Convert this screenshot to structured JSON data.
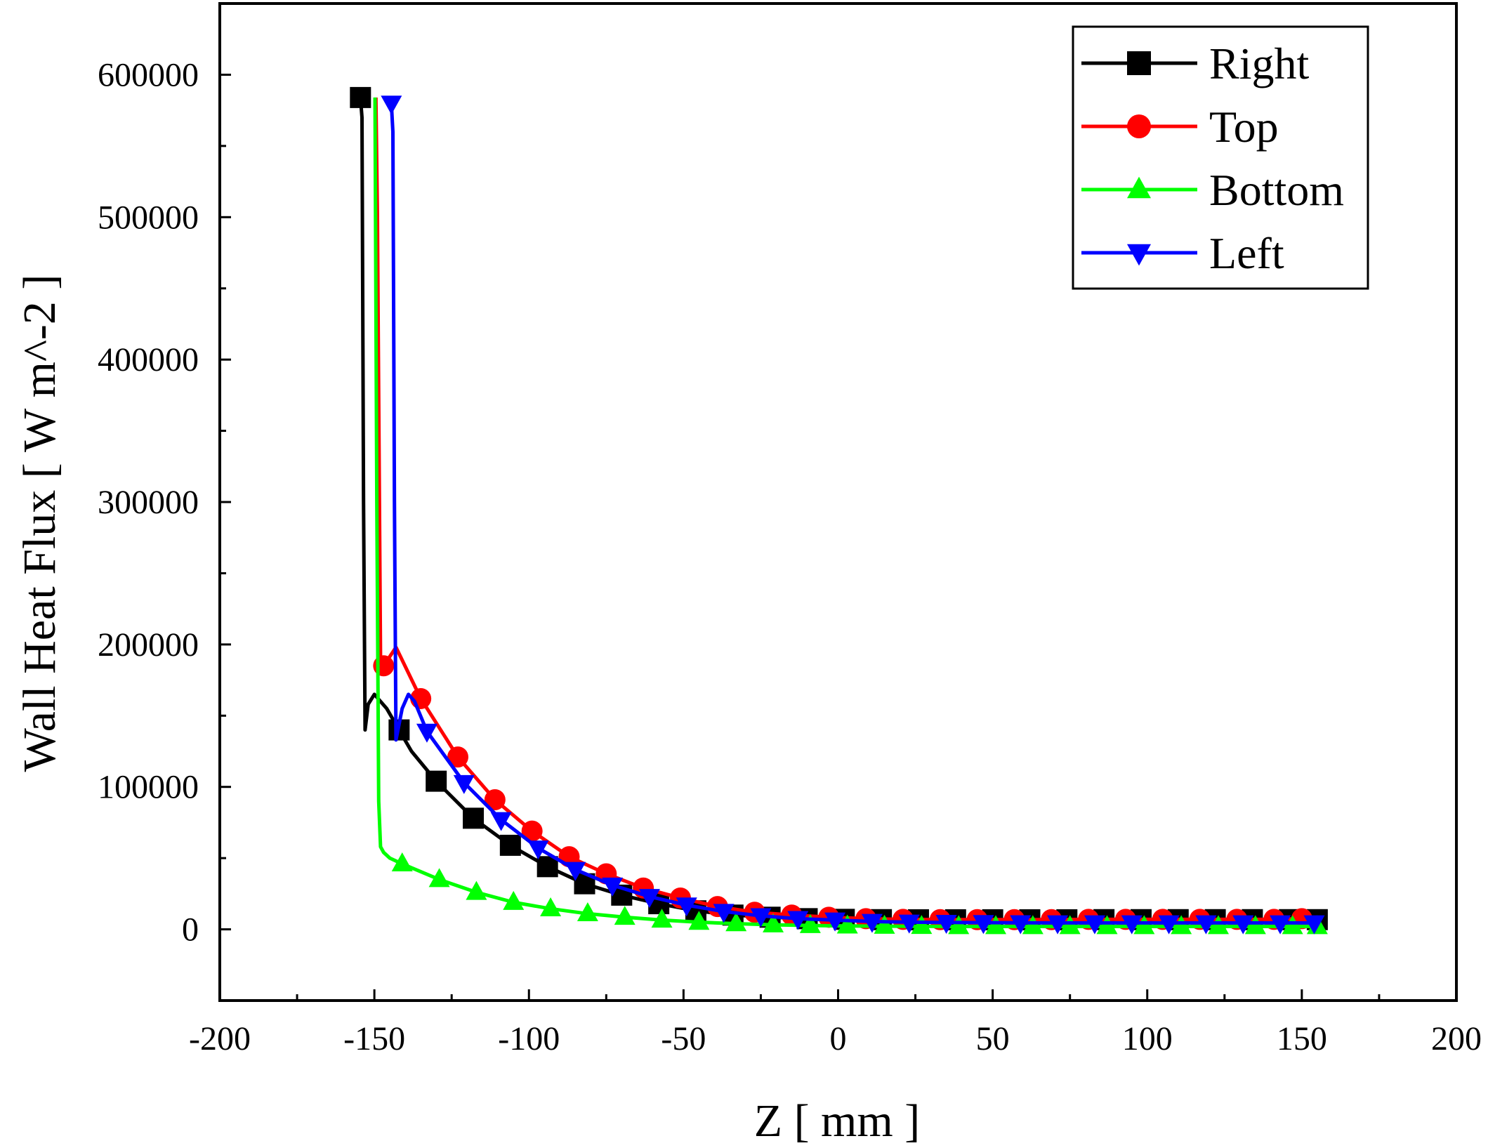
{
  "chart_data": {
    "type": "line",
    "title": "",
    "xlabel": "Z [ mm ]",
    "ylabel": "Wall Heat Flux [ W m^-2 ]",
    "xlim": [
      -200,
      200
    ],
    "ylim": [
      -50000,
      650000
    ],
    "x_ticks": [
      -200,
      -150,
      -100,
      -50,
      0,
      50,
      100,
      150,
      200
    ],
    "x_tick_labels": [
      "-200",
      "-150",
      "-100",
      "-50",
      "0",
      "50",
      "100",
      "150",
      "200"
    ],
    "y_ticks": [
      0,
      100000,
      200000,
      300000,
      400000,
      500000,
      600000
    ],
    "y_tick_labels": [
      "0",
      "100000",
      "200000",
      "300000",
      "400000",
      "500000",
      "600000"
    ],
    "grid": false,
    "legend_position": "top-right",
    "series": [
      {
        "name": "Right",
        "color": "#000000",
        "marker": "square",
        "x": [
          -154.5,
          -154,
          -153.5,
          -153,
          -152,
          -150,
          -146,
          -142,
          -138,
          -130,
          -118,
          -106,
          -94,
          -82,
          -70,
          -58,
          -46,
          -34,
          -22,
          -10,
          2,
          14,
          26,
          38,
          50,
          62,
          74,
          86,
          98,
          110,
          122,
          134,
          146,
          155
        ],
        "y": [
          584000,
          570000,
          300000,
          140000,
          158000,
          165000,
          155000,
          140000,
          125000,
          104000,
          78000,
          59000,
          44000,
          32000,
          24000,
          18000,
          13000,
          10000,
          8500,
          7500,
          7000,
          6800,
          6700,
          6700,
          6700,
          6700,
          6700,
          6800,
          6800,
          6800,
          6800,
          6800,
          6800,
          6800
        ],
        "marker_x": [
          -154.5,
          -142,
          -130,
          -118,
          -106,
          -94,
          -82,
          -70,
          -58,
          -46,
          -34,
          -22,
          -10,
          2,
          14,
          26,
          38,
          50,
          62,
          74,
          86,
          98,
          110,
          122,
          134,
          146,
          155
        ],
        "marker_y": [
          584000,
          140000,
          104000,
          78000,
          59000,
          44000,
          32000,
          24000,
          18000,
          13000,
          10000,
          8500,
          7500,
          7000,
          6800,
          6700,
          6700,
          6700,
          6700,
          6700,
          6800,
          6800,
          6800,
          6800,
          6800,
          6800,
          6800
        ]
      },
      {
        "name": "Top",
        "color": "#ff0000",
        "marker": "circle",
        "x": [
          -149.5,
          -149,
          -148,
          -147,
          -143,
          -135,
          -123,
          -111,
          -99,
          -87,
          -75,
          -63,
          -51,
          -39,
          -27,
          -15,
          -3,
          9,
          21,
          33,
          45,
          57,
          69,
          81,
          93,
          105,
          117,
          129,
          141,
          150
        ],
        "y": [
          584000,
          500000,
          190000,
          185000,
          198000,
          162000,
          121000,
          91000,
          69000,
          51000,
          39000,
          29000,
          22000,
          16000,
          12000,
          10000,
          8500,
          7500,
          7000,
          6800,
          6800,
          6800,
          6800,
          7000,
          7000,
          7000,
          7000,
          7000,
          7000,
          7500
        ],
        "marker_x": [
          -147,
          -135,
          -123,
          -111,
          -99,
          -87,
          -75,
          -63,
          -51,
          -39,
          -27,
          -15,
          -3,
          9,
          21,
          33,
          45,
          57,
          69,
          81,
          93,
          105,
          117,
          129,
          141,
          150
        ],
        "marker_y": [
          185000,
          162000,
          121000,
          91000,
          69000,
          51000,
          39000,
          29000,
          22000,
          16000,
          12000,
          10000,
          8500,
          7500,
          7000,
          6800,
          6800,
          6800,
          6800,
          7000,
          7000,
          7000,
          7000,
          7000,
          7000,
          7500
        ]
      },
      {
        "name": "Bottom",
        "color": "#00ff00",
        "marker": "triangle-up",
        "x": [
          -149.8,
          -149.2,
          -148.6,
          -148,
          -147,
          -145,
          -141,
          -129,
          -117,
          -105,
          -93,
          -81,
          -69,
          -57,
          -45,
          -33,
          -21,
          -9,
          3,
          15,
          27,
          39,
          51,
          63,
          75,
          87,
          99,
          111,
          123,
          135,
          147,
          155
        ],
        "y": [
          584000,
          300000,
          90000,
          58000,
          54000,
          50000,
          46000,
          35000,
          26000,
          19000,
          14500,
          11000,
          8500,
          6500,
          5000,
          4000,
          3200,
          2700,
          2400,
          2200,
          2100,
          2000,
          2000,
          2000,
          2000,
          2000,
          2000,
          2000,
          2000,
          2000,
          2000,
          2000
        ],
        "marker_x": [
          -141,
          -129,
          -117,
          -105,
          -93,
          -81,
          -69,
          -57,
          -45,
          -33,
          -21,
          -9,
          3,
          15,
          27,
          39,
          51,
          63,
          75,
          87,
          99,
          111,
          123,
          135,
          147,
          155
        ],
        "marker_y": [
          46000,
          35000,
          26000,
          19000,
          14500,
          11000,
          8500,
          6500,
          5000,
          4000,
          3200,
          2700,
          2400,
          2200,
          2100,
          2000,
          2000,
          2000,
          2000,
          2000,
          2000,
          2000,
          2000,
          2000,
          2000,
          2000
        ]
      },
      {
        "name": "Left",
        "color": "#0000ff",
        "marker": "triangle-down",
        "x": [
          -144.5,
          -144,
          -143.5,
          -143,
          -141,
          -139,
          -137,
          -133,
          -121,
          -109,
          -97,
          -85,
          -73,
          -61,
          -49,
          -37,
          -25,
          -13,
          -1,
          11,
          23,
          35,
          47,
          59,
          71,
          83,
          95,
          107,
          119,
          131,
          143,
          154
        ],
        "y": [
          580000,
          560000,
          300000,
          133000,
          155000,
          165000,
          160000,
          139000,
          103000,
          77000,
          57000,
          42000,
          31000,
          23000,
          17000,
          12500,
          9500,
          7500,
          6500,
          5500,
          5000,
          4800,
          4700,
          4600,
          4500,
          4500,
          4500,
          4500,
          4500,
          4500,
          4500,
          4500
        ],
        "marker_x": [
          -144.5,
          -133,
          -121,
          -109,
          -97,
          -85,
          -73,
          -61,
          -49,
          -37,
          -25,
          -13,
          -1,
          11,
          23,
          35,
          47,
          59,
          71,
          83,
          95,
          107,
          119,
          131,
          143,
          154
        ],
        "marker_y": [
          580000,
          139000,
          103000,
          77000,
          57000,
          42000,
          31000,
          23000,
          17000,
          12500,
          9500,
          7500,
          6500,
          5500,
          5000,
          4800,
          4700,
          4600,
          4500,
          4500,
          4500,
          4500,
          4500,
          4500,
          4500,
          4500
        ]
      }
    ]
  }
}
